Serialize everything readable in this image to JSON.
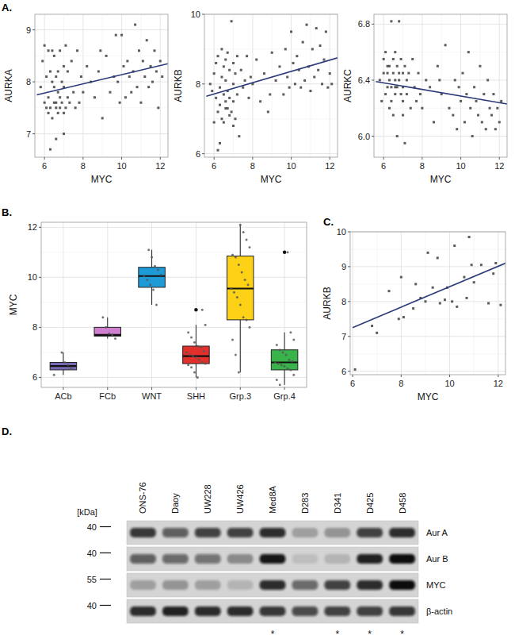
{
  "chart_data": [
    {
      "type": "scatter",
      "title": "A.",
      "x_label": "MYC",
      "y_label": "AURKA",
      "grid": true,
      "xlim": [
        5.5,
        12.4
      ],
      "xticks": [
        6,
        8,
        10,
        12
      ],
      "ylim": [
        6.55,
        9.3
      ],
      "yticks": [
        7,
        8,
        9
      ],
      "x": [
        5.8,
        5.9,
        6.0,
        6.0,
        6.1,
        6.1,
        6.2,
        6.2,
        6.3,
        6.3,
        6.3,
        6.4,
        6.4,
        6.4,
        6.5,
        6.5,
        6.5,
        6.6,
        6.6,
        6.6,
        6.7,
        6.7,
        6.7,
        6.8,
        6.8,
        6.8,
        6.9,
        6.9,
        7.0,
        7.0,
        7.0,
        7.1,
        7.1,
        7.2,
        7.2,
        7.3,
        7.4,
        7.5,
        7.6,
        7.7,
        7.8,
        7.9,
        8.0,
        8.2,
        8.4,
        8.6,
        8.8,
        9.0,
        9.2,
        9.4,
        9.6,
        9.7,
        9.8,
        9.9,
        10.0,
        10.1,
        10.2,
        10.3,
        10.4,
        10.5,
        10.6,
        10.7,
        10.8,
        10.9,
        11.0,
        11.1,
        11.2,
        11.3,
        11.4,
        11.5,
        11.6,
        11.7,
        11.8,
        11.9,
        12.0,
        12.1,
        6.2,
        6.6,
        7.0,
        8.9
      ],
      "values": [
        7.9,
        8.4,
        7.6,
        8.7,
        8.1,
        7.5,
        8.6,
        7.7,
        6.7,
        8.2,
        7.5,
        8.0,
        8.6,
        7.3,
        7.9,
        8.5,
        7.6,
        8.1,
        6.9,
        7.5,
        8.2,
        7.8,
        7.4,
        8.6,
        7.7,
        7.5,
        8.0,
        7.6,
        8.3,
        7.4,
        7.9,
        8.7,
        7.5,
        7.7,
        8.2,
        7.6,
        8.4,
        7.8,
        7.5,
        8.6,
        7.6,
        8.1,
        7.8,
        8.3,
        8.0,
        7.7,
        8.2,
        7.3,
        8.5,
        7.8,
        8.1,
        8.9,
        8.0,
        7.6,
        8.9,
        8.3,
        7.7,
        8.4,
        8.1,
        7.8,
        8.2,
        9.1,
        7.9,
        8.6,
        7.6,
        8.4,
        8.1,
        8.8,
        7.9,
        8.3,
        8.0,
        8.6,
        8.2,
        7.5,
        8.4,
        8.1,
        7.4,
        7.6,
        7.0,
        8.6
      ],
      "color": "#404040",
      "marker": "square",
      "fit_x": [
        5.6,
        12.4
      ],
      "fit_values": [
        7.75,
        8.35
      ],
      "fit_color": "#2b3a78"
    },
    {
      "type": "scatter",
      "x_label": "MYC",
      "y_label": "AURKB",
      "grid": true,
      "xlim": [
        5.5,
        12.4
      ],
      "xticks": [
        6,
        8,
        10,
        12
      ],
      "ylim": [
        5.9,
        10.0
      ],
      "yticks": [
        6,
        8,
        10
      ],
      "x": [
        5.8,
        5.9,
        6.0,
        6.0,
        6.1,
        6.1,
        6.2,
        6.2,
        6.3,
        6.3,
        6.3,
        6.4,
        6.4,
        6.4,
        6.5,
        6.5,
        6.5,
        6.6,
        6.6,
        6.6,
        6.7,
        6.7,
        6.7,
        6.8,
        6.8,
        6.8,
        6.9,
        6.9,
        7.0,
        7.0,
        7.0,
        7.1,
        7.1,
        7.2,
        7.2,
        7.3,
        7.4,
        7.5,
        7.6,
        7.7,
        7.8,
        7.9,
        8.0,
        8.2,
        8.4,
        8.6,
        8.8,
        9.0,
        9.2,
        9.4,
        9.6,
        9.7,
        9.8,
        9.9,
        10.0,
        10.1,
        10.2,
        10.3,
        10.4,
        10.5,
        10.6,
        10.7,
        10.8,
        10.9,
        11.0,
        11.1,
        11.2,
        11.3,
        11.4,
        11.5,
        11.6,
        11.7,
        11.8,
        11.9,
        12.0,
        12.1,
        6.2,
        6.6,
        7.0,
        8.9
      ],
      "values": [
        8.0,
        7.8,
        8.3,
        6.9,
        7.6,
        8.6,
        7.2,
        8.8,
        6.3,
        7.9,
        7.4,
        8.2,
        9.0,
        7.0,
        7.7,
        8.5,
        6.9,
        8.1,
        7.5,
        8.7,
        7.3,
        8.9,
        7.8,
        7.1,
        8.4,
        7.6,
        9.8,
        7.2,
        8.0,
        8.6,
        7.5,
        8.3,
        7.0,
        8.8,
        7.7,
        6.5,
        8.4,
        7.9,
        8.1,
        8.8,
        7.6,
        8.2,
        8.0,
        8.7,
        7.5,
        8.3,
        7.2,
        8.9,
        8.1,
        8.5,
        7.7,
        9.0,
        8.2,
        7.9,
        9.5,
        8.6,
        8.0,
        8.8,
        8.4,
        7.9,
        9.2,
        8.1,
        9.7,
        8.5,
        7.8,
        9.0,
        8.2,
        9.6,
        8.4,
        9.1,
        8.0,
        8.7,
        9.5,
        7.9,
        8.3,
        8.0,
        6.1,
        7.3,
        6.8,
        7.7
      ],
      "color": "#404040",
      "marker": "square",
      "fit_x": [
        5.6,
        12.4
      ],
      "fit_values": [
        7.65,
        8.75
      ],
      "fit_color": "#2b3a78"
    },
    {
      "type": "scatter",
      "x_label": "MYC",
      "y_label": "AURKC",
      "grid": true,
      "xlim": [
        5.5,
        12.4
      ],
      "xticks": [
        6,
        8,
        10,
        12
      ],
      "ylim": [
        5.85,
        6.87
      ],
      "yticks": [
        {
          "value": 6,
          "label": "6.0"
        },
        6.4,
        6.8
      ],
      "x": [
        5.8,
        5.9,
        6.0,
        6.0,
        6.1,
        6.1,
        6.2,
        6.2,
        6.3,
        6.3,
        6.3,
        6.4,
        6.4,
        6.4,
        6.5,
        6.5,
        6.5,
        6.6,
        6.6,
        6.6,
        6.7,
        6.7,
        6.7,
        6.8,
        6.8,
        6.8,
        6.9,
        6.9,
        7.0,
        7.0,
        7.0,
        7.1,
        7.1,
        7.2,
        7.2,
        7.3,
        7.4,
        7.5,
        7.6,
        7.7,
        7.8,
        7.9,
        8.0,
        8.2,
        8.4,
        8.6,
        8.8,
        9.0,
        9.2,
        9.4,
        9.6,
        9.7,
        9.8,
        9.9,
        10.0,
        10.1,
        10.2,
        10.3,
        10.4,
        10.5,
        10.6,
        10.7,
        10.8,
        10.9,
        11.0,
        11.1,
        11.2,
        11.3,
        11.4,
        11.5,
        11.6,
        11.7,
        11.8,
        11.9,
        12.0,
        12.1,
        6.2,
        6.6,
        7.0,
        8.9
      ],
      "values": [
        6.4,
        6.25,
        6.55,
        6.45,
        6.3,
        6.6,
        6.35,
        6.45,
        6.2,
        6.5,
        6.4,
        6.35,
        6.82,
        6.25,
        6.45,
        6.55,
        6.15,
        6.4,
        6.3,
        6.6,
        6.5,
        6.35,
        6.0,
        6.45,
        6.82,
        6.4,
        6.3,
        6.55,
        6.25,
        6.45,
        6.35,
        6.5,
        5.95,
        6.4,
        6.3,
        6.45,
        6.2,
        6.55,
        6.35,
        6.25,
        6.45,
        6.3,
        6.2,
        6.4,
        6.35,
        6.1,
        6.5,
        6.3,
        6.65,
        6.2,
        6.15,
        6.4,
        6.05,
        6.35,
        6.25,
        6.45,
        6.1,
        6.3,
        6.6,
        6.2,
        6.0,
        6.35,
        6.25,
        6.15,
        6.5,
        6.1,
        6.3,
        6.05,
        6.4,
        6.2,
        6.15,
        6.3,
        6.05,
        6.2,
        6.1,
        6.25,
        6.5,
        6.35,
        6.15,
        6.4
      ],
      "color": "#404040",
      "marker": "square",
      "fit_x": [
        5.6,
        12.4
      ],
      "fit_values": [
        6.39,
        6.23
      ],
      "fit_color": "#2b3a78"
    },
    {
      "type": "box",
      "title": "B.",
      "y_label": "MYC",
      "grid": true,
      "categories": [
        "ACb",
        "FCb",
        "WNT",
        "SHH",
        "Grp.3",
        "Grp.4"
      ],
      "colors": [
        "#7b68b5",
        "#d07fd0",
        "#1e9bd7",
        "#e2312c",
        "#fcd116",
        "#38b44a"
      ],
      "ylim": [
        5.6,
        12.2
      ],
      "yticks": [
        6,
        8,
        10,
        12
      ],
      "whisker_low": [
        6.1,
        7.55,
        8.9,
        6.0,
        6.2,
        5.7
      ],
      "q1": [
        6.3,
        7.65,
        9.6,
        6.55,
        8.3,
        6.3
      ],
      "median": [
        6.45,
        7.7,
        10.05,
        6.85,
        9.55,
        6.6
      ],
      "q3": [
        6.6,
        8.0,
        10.4,
        7.25,
        10.85,
        7.1
      ],
      "whisker_high": [
        7.0,
        8.4,
        11.1,
        8.1,
        12.1,
        7.8
      ],
      "outliers": [
        [],
        [],
        [],
        [
          8.7
        ],
        [],
        [
          11.0
        ]
      ],
      "points": [
        [
          6.1,
          6.35,
          6.5,
          6.6,
          7.0
        ],
        [
          7.55,
          7.7,
          7.75,
          8.0,
          8.4
        ],
        [
          8.9,
          9.5,
          9.7,
          9.9,
          10.05,
          10.1,
          10.3,
          10.45,
          10.8,
          11.1
        ],
        [
          6.0,
          6.2,
          6.4,
          6.5,
          6.55,
          6.6,
          6.7,
          6.8,
          6.85,
          6.9,
          7.0,
          7.05,
          7.2,
          7.25,
          7.4,
          7.6,
          7.8,
          8.1,
          8.7
        ],
        [
          6.2,
          6.9,
          7.5,
          8.0,
          8.3,
          8.4,
          8.9,
          9.2,
          9.4,
          9.55,
          9.7,
          9.9,
          10.2,
          10.5,
          10.8,
          10.9,
          11.2,
          11.5,
          11.8,
          12.1
        ],
        [
          5.7,
          5.9,
          6.1,
          6.3,
          6.35,
          6.45,
          6.5,
          6.55,
          6.6,
          6.65,
          6.7,
          6.9,
          7.0,
          7.1,
          7.3,
          7.5,
          7.8,
          11.0
        ]
      ]
    },
    {
      "type": "scatter",
      "title": "C.",
      "x_label": "MYC",
      "y_label": "AURKB",
      "grid": true,
      "xlim": [
        5.9,
        12.3
      ],
      "xticks": [
        6,
        8,
        10,
        12
      ],
      "ylim": [
        5.9,
        10.0
      ],
      "yticks": [
        6,
        7,
        8,
        9,
        10
      ],
      "x": [
        6.1,
        6.8,
        7.0,
        7.5,
        7.9,
        8.0,
        8.1,
        8.5,
        8.6,
        8.8,
        9.0,
        9.1,
        9.3,
        9.5,
        9.6,
        9.8,
        9.9,
        10.1,
        10.2,
        10.3,
        10.6,
        10.7,
        10.8,
        10.9,
        11.0,
        11.3,
        11.6,
        11.8,
        11.9,
        12.1
      ],
      "values": [
        6.05,
        7.3,
        7.1,
        8.3,
        7.5,
        8.7,
        7.55,
        7.8,
        8.5,
        8.1,
        8.0,
        9.4,
        8.4,
        9.25,
        7.95,
        8.05,
        8.4,
        8.0,
        9.6,
        7.85,
        8.7,
        8.1,
        9.85,
        9.05,
        8.55,
        9.05,
        7.95,
        8.8,
        9.1,
        7.9
      ],
      "color": "#404040",
      "marker": "square",
      "fit_x": [
        6.0,
        12.3
      ],
      "fit_values": [
        7.25,
        9.1
      ],
      "fit_color": "#2b3a78"
    },
    {
      "type": "western_blot",
      "title": "D.",
      "unit_label": "[kDa]",
      "categories": [
        "ONS-76",
        "Daoy",
        "UW228",
        "UW426",
        "Med8A",
        "D283",
        "D341",
        "D425",
        "D458"
      ],
      "series": [
        {
          "name": "Aur A",
          "mw": 40,
          "values": [
            0.8,
            0.6,
            0.75,
            0.75,
            0.85,
            0.25,
            0.3,
            0.75,
            0.85
          ]
        },
        {
          "name": "Aur B",
          "mw": 40,
          "values": [
            0.6,
            0.55,
            0.5,
            0.35,
            0.95,
            0.1,
            0.15,
            0.9,
            1.0
          ]
        },
        {
          "name": "MYC",
          "mw": 55,
          "values": [
            0.25,
            0.3,
            0.25,
            0.15,
            0.85,
            0.55,
            0.75,
            0.85,
            1.0
          ]
        },
        {
          "name": "β-actin",
          "mw": 40,
          "values": [
            0.85,
            0.9,
            0.85,
            0.85,
            0.8,
            0.7,
            0.75,
            0.75,
            0.8
          ]
        }
      ],
      "annotation": "*",
      "annotated": [
        false,
        false,
        false,
        false,
        true,
        false,
        true,
        true,
        true
      ]
    }
  ]
}
